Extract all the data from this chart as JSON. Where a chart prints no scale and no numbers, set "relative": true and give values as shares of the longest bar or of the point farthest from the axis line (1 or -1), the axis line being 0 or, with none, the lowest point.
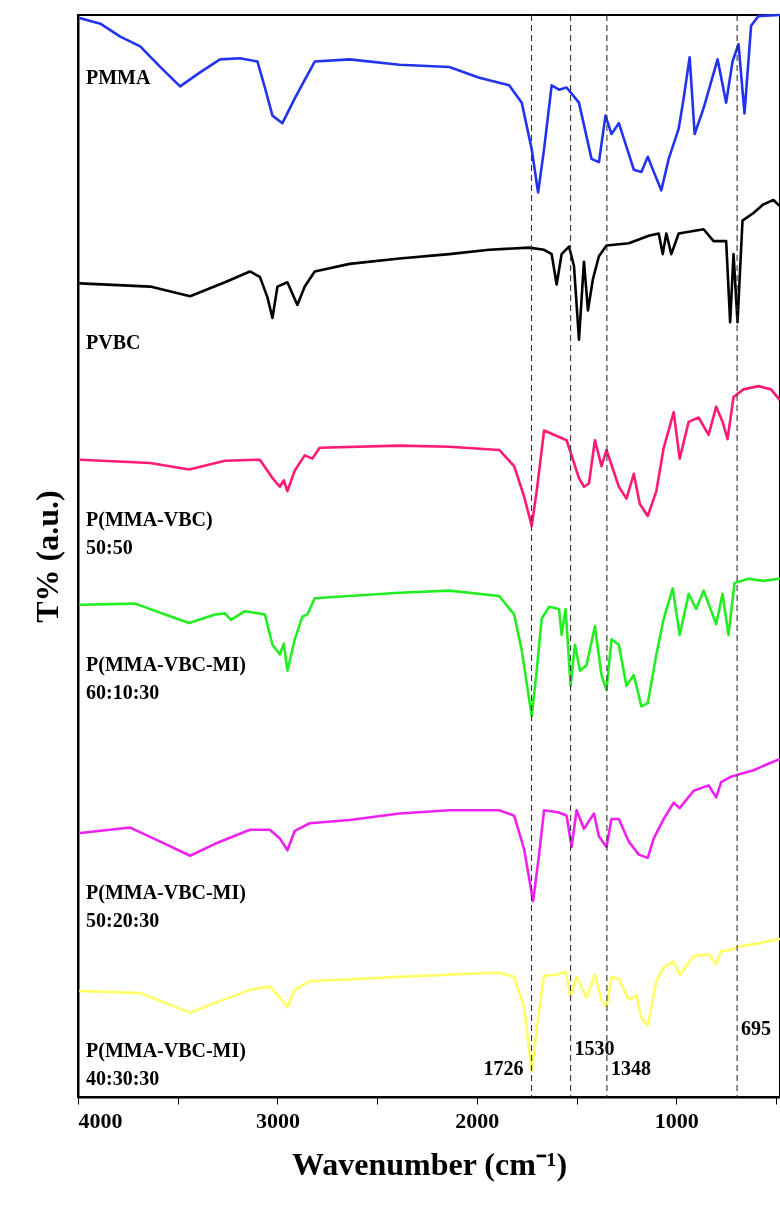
{
  "chart_data": {
    "type": "line",
    "relative": true,
    "xlabel": "Wavenumber (cm⁻¹)",
    "ylabel": "T% (a.u.)",
    "xlim": [
      4000,
      480
    ],
    "xticks": [
      4000,
      {
        "value": 3500,
        "label": null
      },
      3000,
      {
        "value": 2500,
        "label": null
      },
      2000,
      {
        "value": 1500,
        "label": null
      },
      1000,
      {
        "value": 500,
        "label": null
      }
    ],
    "grid": false,
    "marker": "none",
    "line_style": "solid",
    "series": [
      {
        "name": "PMMA",
        "color": "#2233ee",
        "x": [
          3988,
          3888,
          3788,
          3688,
          3588,
          3488,
          3388,
          3288,
          3188,
          3100,
          3063,
          3025,
          2975,
          2913,
          2863,
          2813,
          2638,
          2388,
          2138,
          1988,
          1838,
          1775,
          1725,
          1693,
          1663,
          1625,
          1588,
          1550,
          1488,
          1425,
          1388,
          1355,
          1325,
          1288,
          1213,
          1175,
          1143,
          1113,
          1075,
          1038,
          988,
          963,
          933,
          908,
          863,
          793,
          750,
          718,
          688,
          658,
          625,
          588,
          485
        ],
        "values": [
          0.997,
          0.992,
          0.98,
          0.971,
          0.952,
          0.934,
          0.947,
          0.959,
          0.96,
          0.957,
          0.933,
          0.907,
          0.9,
          0.923,
          0.94,
          0.957,
          0.959,
          0.954,
          0.952,
          0.942,
          0.935,
          0.919,
          0.876,
          0.836,
          0.876,
          0.935,
          0.931,
          0.933,
          0.919,
          0.867,
          0.864,
          0.907,
          0.89,
          0.9,
          0.857,
          0.855,
          0.869,
          0.855,
          0.838,
          0.867,
          0.895,
          0.923,
          0.961,
          0.89,
          0.914,
          0.959,
          0.919,
          0.957,
          0.973,
          0.909,
          0.99,
          0.999,
          1.0
        ]
      },
      {
        "name": "PVBC",
        "color": "#000000",
        "x": [
          3988,
          3638,
          3438,
          3263,
          3138,
          3088,
          3050,
          3025,
          3000,
          2950,
          2900,
          2863,
          2813,
          2638,
          2388,
          2138,
          1938,
          1738,
          1663,
          1625,
          1600,
          1575,
          1538,
          1513,
          1488,
          1463,
          1443,
          1418,
          1388,
          1350,
          1238,
          1138,
          1088,
          1068,
          1050,
          1025,
          988,
          863,
          813,
          750,
          730,
          713,
          693,
          668,
          613,
          563,
          513,
          485
        ],
        "values": [
          0.752,
          0.749,
          0.74,
          0.753,
          0.763,
          0.758,
          0.739,
          0.72,
          0.749,
          0.753,
          0.732,
          0.749,
          0.763,
          0.77,
          0.775,
          0.779,
          0.783,
          0.785,
          0.783,
          0.779,
          0.751,
          0.779,
          0.786,
          0.768,
          0.7,
          0.772,
          0.727,
          0.756,
          0.777,
          0.787,
          0.789,
          0.796,
          0.798,
          0.779,
          0.798,
          0.779,
          0.798,
          0.802,
          0.791,
          0.791,
          0.716,
          0.779,
          0.716,
          0.81,
          0.817,
          0.825,
          0.829,
          0.824
        ]
      },
      {
        "name": "P(MMA-VBC)\n50:50",
        "color": "#ff1a75",
        "x": [
          3988,
          3638,
          3443,
          3263,
          3088,
          3025,
          2988,
          2968,
          2950,
          2913,
          2863,
          2825,
          2788,
          2388,
          2138,
          1888,
          1813,
          1763,
          1725,
          1700,
          1663,
          1613,
          1550,
          1488,
          1463,
          1438,
          1408,
          1375,
          1350,
          1288,
          1250,
          1213,
          1183,
          1143,
          1100,
          1063,
          1013,
          983,
          938,
          888,
          838,
          800,
          768,
          743,
          713,
          663,
          588,
          525,
          485
        ],
        "values": [
          0.589,
          0.586,
          0.58,
          0.588,
          0.589,
          0.572,
          0.564,
          0.57,
          0.56,
          0.579,
          0.593,
          0.59,
          0.6,
          0.602,
          0.601,
          0.598,
          0.583,
          0.555,
          0.528,
          0.56,
          0.616,
          0.612,
          0.607,
          0.572,
          0.564,
          0.567,
          0.607,
          0.583,
          0.598,
          0.564,
          0.553,
          0.576,
          0.548,
          0.537,
          0.56,
          0.6,
          0.633,
          0.59,
          0.624,
          0.628,
          0.612,
          0.638,
          0.624,
          0.608,
          0.647,
          0.654,
          0.657,
          0.654,
          0.645
        ]
      },
      {
        "name": "P(MMA-VBC-MI)\n60:10:30",
        "color": "#22ee22",
        "x": [
          3988,
          3713,
          3563,
          3443,
          3313,
          3263,
          3233,
          3163,
          3063,
          3025,
          2988,
          2968,
          2950,
          2913,
          2875,
          2850,
          2813,
          2388,
          2138,
          1888,
          1813,
          1775,
          1725,
          1700,
          1675,
          1638,
          1588,
          1575,
          1555,
          1530,
          1508,
          1483,
          1450,
          1408,
          1375,
          1350,
          1325,
          1288,
          1250,
          1213,
          1175,
          1143,
          1100,
          1063,
          1018,
          983,
          938,
          900,
          863,
          800,
          768,
          738,
          708,
          638,
          563,
          485
        ],
        "values": [
          0.455,
          0.456,
          0.446,
          0.438,
          0.446,
          0.447,
          0.441,
          0.449,
          0.446,
          0.418,
          0.409,
          0.419,
          0.394,
          0.423,
          0.444,
          0.446,
          0.461,
          0.466,
          0.468,
          0.463,
          0.446,
          0.413,
          0.352,
          0.394,
          0.442,
          0.453,
          0.451,
          0.427,
          0.451,
          0.38,
          0.418,
          0.394,
          0.399,
          0.435,
          0.39,
          0.376,
          0.423,
          0.418,
          0.38,
          0.39,
          0.361,
          0.364,
          0.409,
          0.442,
          0.47,
          0.427,
          0.465,
          0.451,
          0.468,
          0.437,
          0.465,
          0.427,
          0.475,
          0.479,
          0.477,
          0.479
        ]
      },
      {
        "name": "P(MMA-VBC-MI)\n50:20:30",
        "color": "#ee22ee",
        "x": [
          3988,
          3738,
          3563,
          3438,
          3313,
          3138,
          3038,
          2988,
          2950,
          2913,
          2838,
          2638,
          2388,
          2138,
          1888,
          1813,
          1763,
          1718,
          1688,
          1663,
          1588,
          1550,
          1525,
          1500,
          1463,
          1413,
          1388,
          1350,
          1325,
          1288,
          1238,
          1188,
          1143,
          1113,
          1063,
          1013,
          983,
          913,
          838,
          800,
          775,
          725,
          688,
          613,
          538,
          485
        ],
        "values": [
          0.244,
          0.249,
          0.234,
          0.223,
          0.234,
          0.247,
          0.247,
          0.239,
          0.228,
          0.246,
          0.253,
          0.256,
          0.262,
          0.265,
          0.265,
          0.26,
          0.229,
          0.181,
          0.224,
          0.265,
          0.263,
          0.26,
          0.231,
          0.265,
          0.248,
          0.262,
          0.241,
          0.231,
          0.257,
          0.257,
          0.236,
          0.224,
          0.221,
          0.239,
          0.257,
          0.272,
          0.267,
          0.283,
          0.288,
          0.277,
          0.291,
          0.296,
          0.298,
          0.302,
          0.308,
          0.312
        ]
      },
      {
        "name": "P(MMA-VBC-MI)\n40:30:30",
        "color": "#ffff66",
        "x": [
          3988,
          3688,
          3563,
          3438,
          3313,
          3138,
          3038,
          2988,
          2950,
          2913,
          2838,
          2388,
          1888,
          1813,
          1763,
          1725,
          1693,
          1663,
          1600,
          1555,
          1530,
          1500,
          1450,
          1408,
          1375,
          1350,
          1325,
          1288,
          1238,
          1200,
          1175,
          1143,
          1100,
          1063,
          1013,
          983,
          913,
          838,
          800,
          775,
          725,
          688,
          588,
          485
        ],
        "values": [
          0.098,
          0.096,
          0.087,
          0.078,
          0.087,
          0.099,
          0.102,
          0.092,
          0.083,
          0.099,
          0.107,
          0.111,
          0.115,
          0.111,
          0.083,
          0.024,
          0.073,
          0.112,
          0.113,
          0.116,
          0.092,
          0.111,
          0.092,
          0.113,
          0.09,
          0.083,
          0.111,
          0.109,
          0.09,
          0.094,
          0.073,
          0.066,
          0.107,
          0.12,
          0.125,
          0.113,
          0.13,
          0.132,
          0.123,
          0.135,
          0.136,
          0.139,
          0.142,
          0.146
        ]
      }
    ],
    "ref_lines": [
      {
        "axis": "x",
        "value": 1726,
        "label": "1726",
        "line_style": "dashed"
      },
      {
        "axis": "x",
        "value": 1530,
        "label": "1530",
        "line_style": "dashed"
      },
      {
        "axis": "x",
        "value": 1348,
        "label": "1348",
        "line_style": "dashed"
      },
      {
        "axis": "x",
        "value": 695,
        "label": "695",
        "line_style": "dashed"
      }
    ]
  }
}
